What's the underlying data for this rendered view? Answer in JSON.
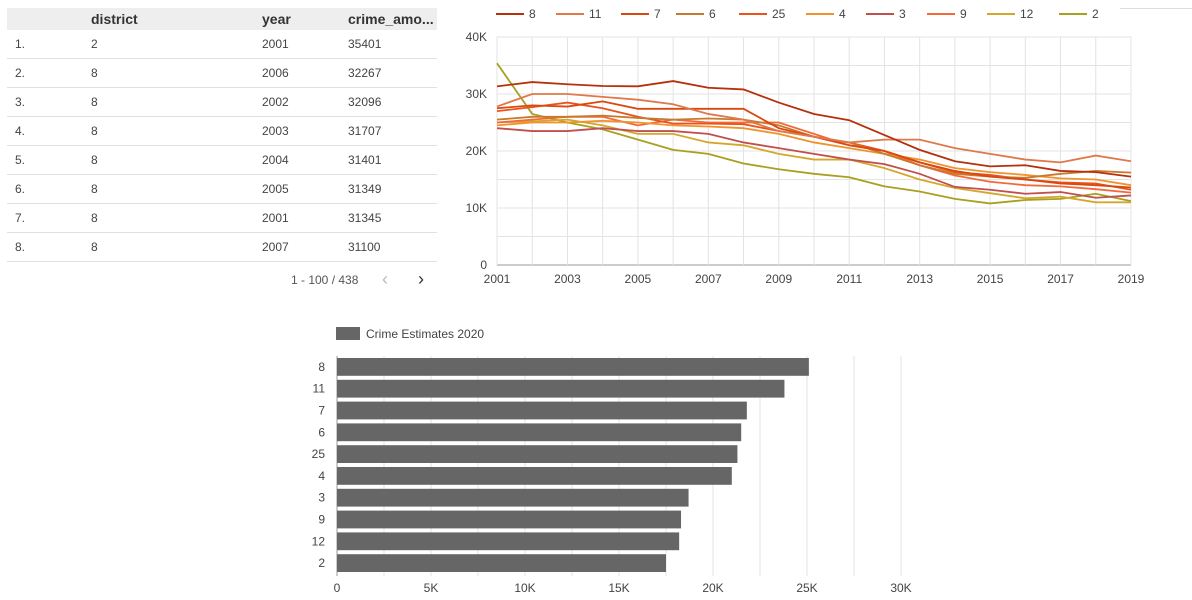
{
  "table": {
    "columns": [
      "district",
      "year",
      "crime_amo..."
    ],
    "rows": [
      {
        "idx": "1.",
        "district": "2",
        "year": "2001",
        "crime": "35401"
      },
      {
        "idx": "2.",
        "district": "8",
        "year": "2006",
        "crime": "32267"
      },
      {
        "idx": "3.",
        "district": "8",
        "year": "2002",
        "crime": "32096"
      },
      {
        "idx": "4.",
        "district": "8",
        "year": "2003",
        "crime": "31707"
      },
      {
        "idx": "5.",
        "district": "8",
        "year": "2004",
        "crime": "31401"
      },
      {
        "idx": "6.",
        "district": "8",
        "year": "2005",
        "crime": "31349"
      },
      {
        "idx": "7.",
        "district": "8",
        "year": "2001",
        "crime": "31345"
      },
      {
        "idx": "8.",
        "district": "8",
        "year": "2007",
        "crime": "31100"
      }
    ],
    "pagination": "1 - 100 / 438",
    "prev_icon": "chevron-left-icon",
    "next_icon": "chevron-right-icon",
    "prev_glyph": "‹",
    "next_glyph": "›"
  },
  "chart_data": [
    {
      "type": "line",
      "title": "",
      "xlabel": "",
      "ylabel": "",
      "x": [
        2001,
        2002,
        2003,
        2004,
        2005,
        2006,
        2007,
        2008,
        2009,
        2010,
        2011,
        2012,
        2013,
        2014,
        2015,
        2016,
        2017,
        2018,
        2019
      ],
      "xticks": [
        "2001",
        "2003",
        "2005",
        "2007",
        "2009",
        "2011",
        "2013",
        "2015",
        "2017",
        "2019"
      ],
      "yticks": [
        "0",
        "10K",
        "20K",
        "30K",
        "40K"
      ],
      "ylim": [
        0,
        40000
      ],
      "grid": true,
      "legend": "top",
      "series": [
        {
          "name": "8",
          "color": "#b5300b",
          "values": [
            31345,
            32096,
            31707,
            31401,
            31349,
            32267,
            31100,
            30800,
            28500,
            26500,
            25400,
            22800,
            20200,
            18200,
            17300,
            17500,
            16500,
            16300,
            15500
          ]
        },
        {
          "name": "11",
          "color": "#e0784a",
          "values": [
            27800,
            30000,
            30000,
            29500,
            29000,
            28200,
            26500,
            25500,
            23500,
            22500,
            21500,
            22000,
            22000,
            20500,
            19500,
            18500,
            18000,
            19200,
            18200
          ]
        },
        {
          "name": "7",
          "color": "#d9480f",
          "values": [
            27500,
            28000,
            27800,
            28700,
            27400,
            27400,
            27400,
            27400,
            24000,
            22500,
            21000,
            20000,
            18000,
            16500,
            15500,
            15000,
            14300,
            14000,
            13600
          ]
        },
        {
          "name": "6",
          "color": "#c77a2e",
          "values": [
            25500,
            26000,
            26000,
            26200,
            25800,
            25500,
            25700,
            25500,
            24500,
            22500,
            21500,
            19500,
            17500,
            16000,
            15500,
            15300,
            16000,
            16500,
            16200
          ]
        },
        {
          "name": "25",
          "color": "#e8531e",
          "values": [
            27000,
            27700,
            28500,
            27500,
            26000,
            24800,
            24800,
            24700,
            23500,
            22500,
            21500,
            20000,
            18000,
            16300,
            15800,
            15000,
            14500,
            14300,
            13200
          ]
        },
        {
          "name": "4",
          "color": "#f0932e",
          "values": [
            24500,
            25000,
            25000,
            25300,
            25000,
            24500,
            24300,
            24000,
            23000,
            21500,
            20500,
            19500,
            18500,
            17000,
            16300,
            15800,
            15200,
            15000,
            14000
          ]
        },
        {
          "name": "3",
          "color": "#c0504d",
          "values": [
            24000,
            23500,
            23500,
            24000,
            23500,
            23500,
            23000,
            21500,
            20500,
            19500,
            18500,
            17700,
            16000,
            13700,
            13200,
            12500,
            12800,
            11800,
            12200
          ]
        },
        {
          "name": "9",
          "color": "#f26a3a",
          "values": [
            25000,
            25500,
            26000,
            26000,
            24500,
            25500,
            25000,
            25000,
            25000,
            23000,
            21000,
            20000,
            17500,
            15700,
            14600,
            14000,
            13800,
            13300,
            12700
          ]
        },
        {
          "name": "12",
          "color": "#d4a72c",
          "values": [
            25000,
            25200,
            25500,
            24500,
            23000,
            23000,
            21500,
            21000,
            19500,
            18500,
            18500,
            17000,
            15000,
            13500,
            12600,
            11700,
            12000,
            11000,
            11000
          ]
        },
        {
          "name": "2",
          "color": "#a8a020",
          "values": [
            35401,
            26500,
            25000,
            23800,
            22000,
            20200,
            19500,
            17800,
            16800,
            16000,
            15400,
            13800,
            12900,
            11600,
            10800,
            11400,
            11600,
            12500,
            11200
          ]
        }
      ]
    },
    {
      "type": "bar",
      "orientation": "horizontal",
      "title": "",
      "xlabel": "",
      "ylabel": "",
      "categories": [
        "8",
        "11",
        "7",
        "6",
        "25",
        "4",
        "3",
        "9",
        "12",
        "2"
      ],
      "series": [
        {
          "name": "Crime Estimates 2020",
          "color": "#666666",
          "values": [
            25100,
            23800,
            21800,
            21500,
            21300,
            21000,
            18700,
            18300,
            18200,
            17500
          ]
        }
      ],
      "xticks": [
        "0",
        "5K",
        "10K",
        "15K",
        "20K",
        "25K",
        "30K"
      ],
      "xlim": [
        0,
        30000
      ],
      "grid": true,
      "legend": "top-left"
    }
  ]
}
